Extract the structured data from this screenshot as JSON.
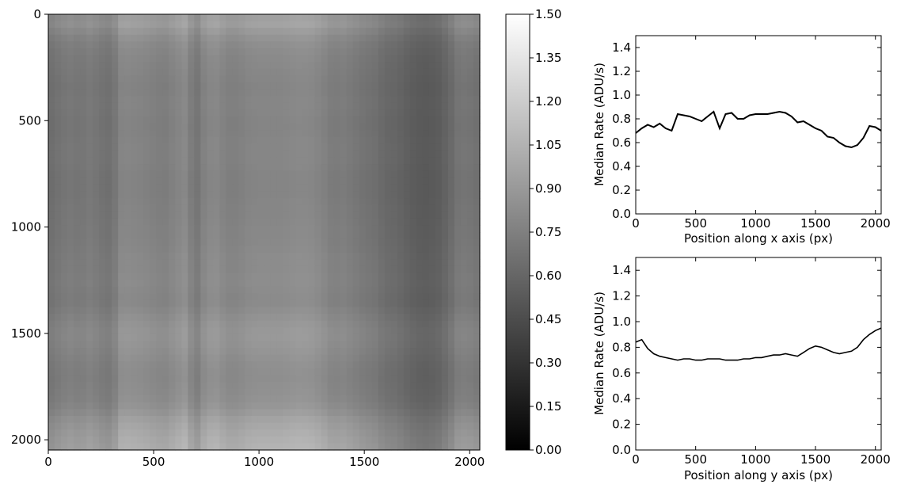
{
  "chart_data": [
    {
      "type": "heatmap",
      "title": "",
      "xlabel": "",
      "ylabel": "",
      "x_ticks": [
        "0",
        "500",
        "1000",
        "1500",
        "2000"
      ],
      "y_ticks": [
        "0",
        "500",
        "1000",
        "1500",
        "2000"
      ],
      "xlim": [
        0,
        2048
      ],
      "ylim": [
        2048,
        0
      ],
      "colormap": "gray",
      "colorbar": {
        "range": [
          0.0,
          1.5
        ],
        "ticks": [
          "0.00",
          "0.15",
          "0.30",
          "0.45",
          "0.60",
          "0.75",
          "0.90",
          "1.05",
          "1.20",
          "1.35",
          "1.50"
        ]
      },
      "column_profile": {
        "x": [
          0,
          50,
          100,
          150,
          200,
          250,
          300,
          350,
          400,
          450,
          500,
          550,
          600,
          650,
          700,
          750,
          800,
          850,
          900,
          950,
          1000,
          1050,
          1100,
          1150,
          1200,
          1250,
          1300,
          1350,
          1400,
          1450,
          1500,
          1550,
          1600,
          1650,
          1700,
          1750,
          1800,
          1850,
          1900,
          1950,
          2000,
          2048
        ],
        "values": [
          0.68,
          0.72,
          0.75,
          0.73,
          0.76,
          0.72,
          0.7,
          0.84,
          0.83,
          0.82,
          0.8,
          0.78,
          0.82,
          0.86,
          0.72,
          0.84,
          0.85,
          0.8,
          0.8,
          0.83,
          0.84,
          0.84,
          0.84,
          0.85,
          0.86,
          0.85,
          0.82,
          0.77,
          0.78,
          0.75,
          0.72,
          0.7,
          0.65,
          0.64,
          0.6,
          0.57,
          0.56,
          0.58,
          0.64,
          0.74,
          0.73,
          0.7
        ]
      },
      "row_profile": {
        "y": [
          0,
          50,
          100,
          150,
          200,
          250,
          300,
          350,
          400,
          450,
          500,
          550,
          600,
          650,
          700,
          750,
          800,
          850,
          900,
          950,
          1000,
          1050,
          1100,
          1150,
          1200,
          1250,
          1300,
          1350,
          1400,
          1450,
          1500,
          1550,
          1600,
          1650,
          1700,
          1750,
          1800,
          1850,
          1900,
          1950,
          2000,
          2048
        ],
        "values": [
          0.84,
          0.86,
          0.79,
          0.75,
          0.73,
          0.72,
          0.71,
          0.7,
          0.71,
          0.71,
          0.7,
          0.7,
          0.71,
          0.71,
          0.71,
          0.7,
          0.7,
          0.7,
          0.71,
          0.71,
          0.72,
          0.72,
          0.73,
          0.74,
          0.74,
          0.75,
          0.74,
          0.73,
          0.76,
          0.79,
          0.81,
          0.8,
          0.78,
          0.76,
          0.75,
          0.76,
          0.77,
          0.8,
          0.86,
          0.9,
          0.93,
          0.95
        ]
      }
    },
    {
      "type": "line",
      "title": "",
      "xlabel": "Position along x axis (px)",
      "ylabel": "Median Rate (ADU/s)",
      "xlim": [
        0,
        2048
      ],
      "ylim": [
        0.0,
        1.5
      ],
      "x_ticks": [
        "0",
        "500",
        "1000",
        "1500",
        "2000"
      ],
      "y_ticks": [
        "0.0",
        "0.2",
        "0.4",
        "0.6",
        "0.8",
        "1.0",
        "1.2",
        "1.4"
      ],
      "grid": false,
      "series": [
        {
          "x": [
            0,
            50,
            100,
            150,
            200,
            250,
            300,
            350,
            400,
            450,
            500,
            550,
            600,
            650,
            700,
            750,
            800,
            850,
            900,
            950,
            1000,
            1050,
            1100,
            1150,
            1200,
            1250,
            1300,
            1350,
            1400,
            1450,
            1500,
            1550,
            1600,
            1650,
            1700,
            1750,
            1800,
            1850,
            1900,
            1950,
            2000,
            2048
          ],
          "values": [
            0.68,
            0.72,
            0.75,
            0.73,
            0.76,
            0.72,
            0.7,
            0.84,
            0.83,
            0.82,
            0.8,
            0.78,
            0.82,
            0.86,
            0.72,
            0.84,
            0.85,
            0.8,
            0.8,
            0.83,
            0.84,
            0.84,
            0.84,
            0.85,
            0.86,
            0.85,
            0.82,
            0.77,
            0.78,
            0.75,
            0.72,
            0.7,
            0.65,
            0.64,
            0.6,
            0.57,
            0.56,
            0.58,
            0.64,
            0.74,
            0.73,
            0.7
          ]
        }
      ]
    },
    {
      "type": "line",
      "title": "",
      "xlabel": "Position along y axis (px)",
      "ylabel": "Median Rate (ADU/s)",
      "xlim": [
        0,
        2048
      ],
      "ylim": [
        0.0,
        1.5
      ],
      "x_ticks": [
        "0",
        "500",
        "1000",
        "1500",
        "2000"
      ],
      "y_ticks": [
        "0.0",
        "0.2",
        "0.4",
        "0.6",
        "0.8",
        "1.0",
        "1.2",
        "1.4"
      ],
      "grid": false,
      "series": [
        {
          "x": [
            0,
            50,
            100,
            150,
            200,
            250,
            300,
            350,
            400,
            450,
            500,
            550,
            600,
            650,
            700,
            750,
            800,
            850,
            900,
            950,
            1000,
            1050,
            1100,
            1150,
            1200,
            1250,
            1300,
            1350,
            1400,
            1450,
            1500,
            1550,
            1600,
            1650,
            1700,
            1750,
            1800,
            1850,
            1900,
            1950,
            2000,
            2048
          ],
          "values": [
            0.84,
            0.86,
            0.79,
            0.75,
            0.73,
            0.72,
            0.71,
            0.7,
            0.71,
            0.71,
            0.7,
            0.7,
            0.71,
            0.71,
            0.71,
            0.7,
            0.7,
            0.7,
            0.71,
            0.71,
            0.72,
            0.72,
            0.73,
            0.74,
            0.74,
            0.75,
            0.74,
            0.73,
            0.76,
            0.79,
            0.81,
            0.8,
            0.78,
            0.76,
            0.75,
            0.76,
            0.77,
            0.8,
            0.86,
            0.9,
            0.93,
            0.95
          ]
        }
      ]
    }
  ]
}
